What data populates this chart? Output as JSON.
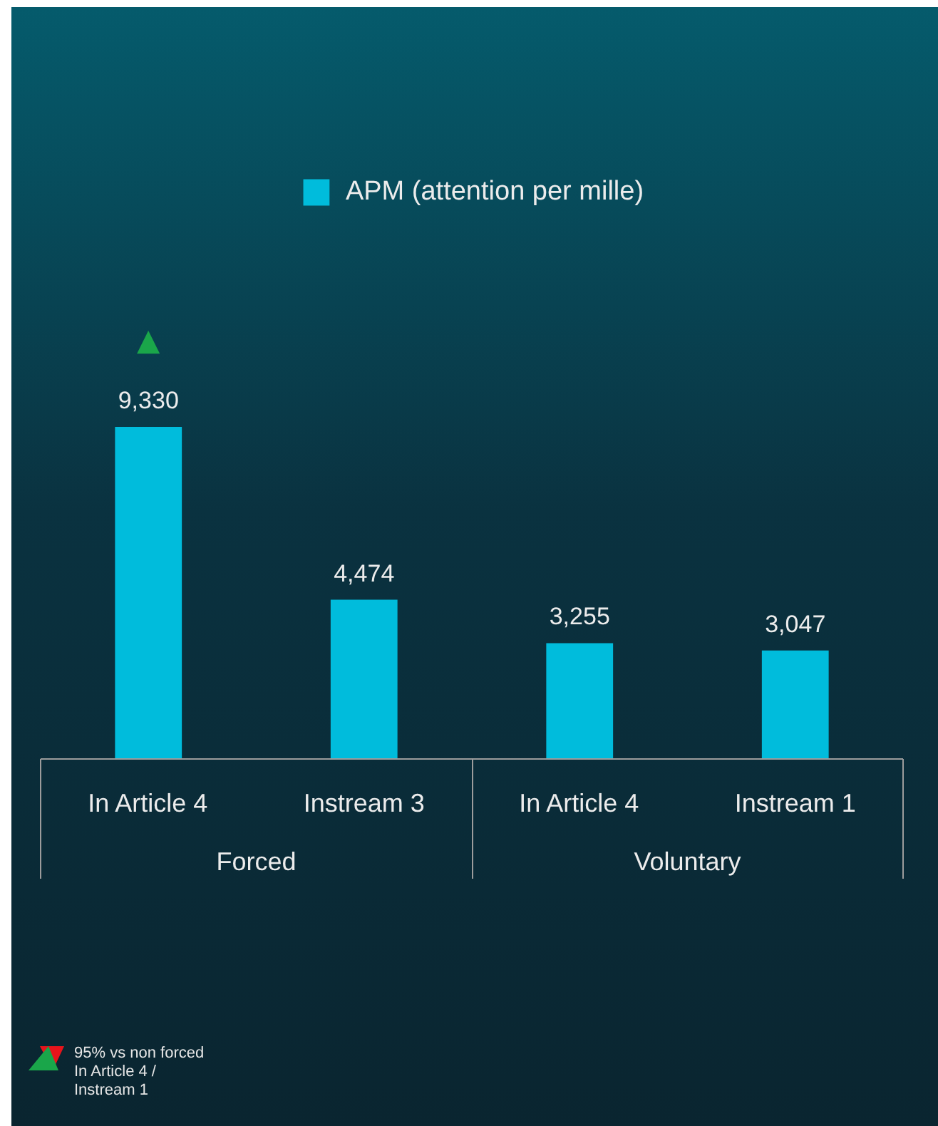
{
  "chart_data": {
    "type": "bar",
    "categories": [
      "In Article 4",
      "Instream 3",
      "In Article 4",
      "Instream 1"
    ],
    "series": [
      {
        "name": "APM (attention per mille)",
        "color": "#00bcdc",
        "values": [
          9330,
          4474,
          3255,
          3047
        ],
        "value_labels": [
          "9,330",
          "4,474",
          "3,255",
          "3,047"
        ]
      }
    ],
    "legend": "top",
    "annotations": [
      {
        "text": "▲",
        "x": "In Article 4",
        "y": 9330
      },
      "Forced",
      "Voluntary",
      "95% vs non forced In Article 4 / Instream 1"
    ]
  }
}
